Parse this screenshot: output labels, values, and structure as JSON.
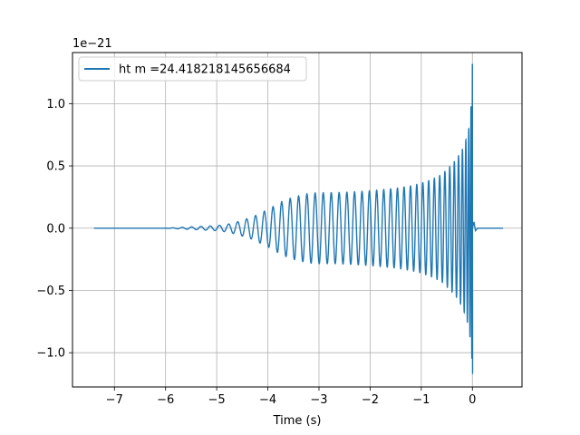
{
  "chart_data": {
    "type": "line",
    "title": "",
    "xlabel": "Time (s)",
    "ylabel": "",
    "y_offset_label": "1e−21",
    "xlim": [
      -7.82,
      0.97
    ],
    "ylim": [
      -1.275,
      1.41
    ],
    "y_scale_factor": 1e-21,
    "x_ticks": [
      -7,
      -6,
      -5,
      -4,
      -3,
      -2,
      -1,
      0
    ],
    "x_tick_labels": [
      "−7",
      "−6",
      "−5",
      "−4",
      "−3",
      "−2",
      "−1",
      "0"
    ],
    "y_ticks": [
      -1.0,
      -0.5,
      0.0,
      0.5,
      1.0
    ],
    "y_tick_labels": [
      "−1.0",
      "−0.5",
      "0.0",
      "0.5",
      "1.0"
    ],
    "grid": true,
    "legend_position": "top-left",
    "series": [
      {
        "name": "ht m =24.418218145656684",
        "color": "#1f77b4",
        "x_range": [
          -7.4,
          0.6
        ],
        "merger_time": 0.0,
        "envelope": {
          "t": [
            -7.4,
            -6.0,
            -5.5,
            -5.0,
            -4.8,
            -4.6,
            -4.3,
            -4.0,
            -3.7,
            -3.5,
            -3.2,
            -3.0,
            -2.7,
            -2.4,
            -2.0,
            -1.5,
            -1.2,
            -1.0,
            -0.8,
            -0.6,
            -0.4,
            -0.3,
            -0.2,
            -0.12,
            -0.07,
            -0.04,
            -0.02,
            -0.005,
            0.0
          ],
          "upper": [
            0.0,
            0.0,
            0.01,
            0.02,
            0.03,
            0.05,
            0.09,
            0.15,
            0.22,
            0.25,
            0.28,
            0.285,
            0.285,
            0.29,
            0.3,
            0.32,
            0.34,
            0.36,
            0.39,
            0.43,
            0.51,
            0.56,
            0.63,
            0.72,
            0.8,
            0.9,
            1.02,
            1.2,
            1.32
          ],
          "lower": [
            0.0,
            0.0,
            -0.01,
            -0.02,
            -0.03,
            -0.05,
            -0.09,
            -0.15,
            -0.22,
            -0.25,
            -0.28,
            -0.285,
            -0.285,
            -0.29,
            -0.3,
            -0.32,
            -0.34,
            -0.36,
            -0.39,
            -0.43,
            -0.51,
            -0.56,
            -0.63,
            -0.72,
            -0.8,
            -0.9,
            -1.0,
            -1.08,
            -1.17
          ]
        },
        "post_merger": {
          "t": [
            0.0,
            0.03,
            0.06,
            0.1,
            0.6
          ],
          "value": [
            0.0,
            0.05,
            -0.02,
            0.0,
            0.0
          ]
        }
      }
    ]
  }
}
